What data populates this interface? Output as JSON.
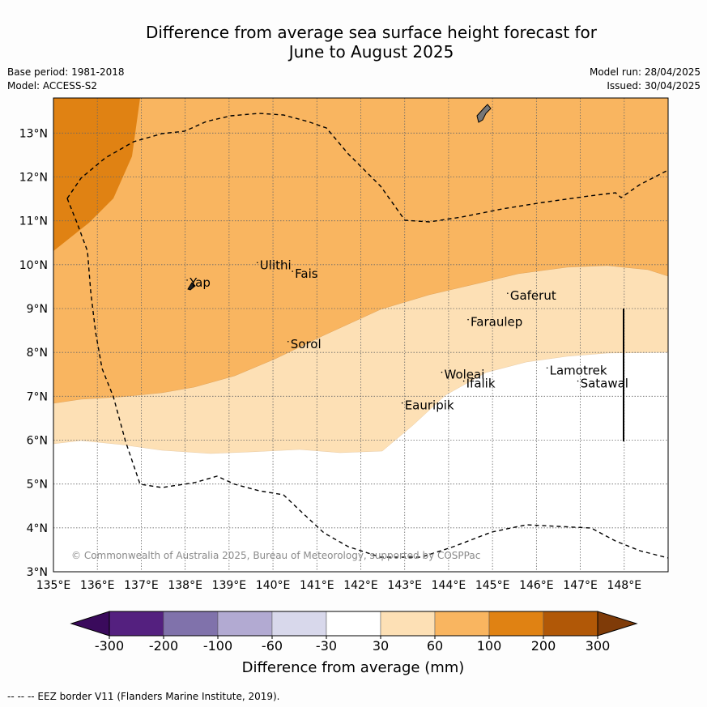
{
  "title_line1": "Difference from average sea surface height forecast for",
  "title_line2": "June to August 2025",
  "base_period": "Base period: 1981-2018",
  "model": "Model: ACCESS-S2",
  "model_run": "Model run: 28/04/2025",
  "issued": "Issued: 30/04/2025",
  "copyright": "© Commonwealth of Australia 2025, Bureau of Meteorology, supported by COSPPac",
  "footer_note": "--  --  -- EEZ border V11 (Flanders Marine Institute, 2019).",
  "colorbar": {
    "title": "Difference from average (mm)",
    "ticks": [
      "-300",
      "-200",
      "-100",
      "-60",
      "-30",
      "30",
      "60",
      "100",
      "200",
      "300"
    ],
    "colors": [
      "#3a0a5c",
      "#54207f",
      "#8072ab",
      "#b2aad2",
      "#d8d8eb",
      "#ffffff",
      "#fde0b5",
      "#f9b560",
      "#e08213",
      "#b15807",
      "#7f3b08"
    ]
  },
  "axes": {
    "lon_labels": [
      "135°E",
      "136°E",
      "137°E",
      "138°E",
      "139°E",
      "140°E",
      "141°E",
      "142°E",
      "143°E",
      "144°E",
      "145°E",
      "146°E",
      "147°E",
      "148°E"
    ],
    "lat_labels": [
      "13°N",
      "12°N",
      "11°N",
      "10°N",
      "9°N",
      "8°N",
      "7°N",
      "6°N",
      "5°N",
      "4°N",
      "3°N"
    ],
    "lon_range": [
      135,
      149
    ],
    "lat_range": [
      3,
      13.8
    ]
  },
  "places": [
    {
      "name": "Yap",
      "lon": 138.1,
      "lat": 9.5
    },
    {
      "name": "Ulithi",
      "lon": 139.7,
      "lat": 9.9
    },
    {
      "name": "Fais",
      "lon": 140.5,
      "lat": 9.7
    },
    {
      "name": "Sorol",
      "lon": 140.4,
      "lat": 8.1
    },
    {
      "name": "Gaferut",
      "lon": 145.4,
      "lat": 9.2
    },
    {
      "name": "Faraulep",
      "lon": 144.5,
      "lat": 8.6
    },
    {
      "name": "Woleai",
      "lon": 143.9,
      "lat": 7.4
    },
    {
      "name": "Ifalik",
      "lon": 144.4,
      "lat": 7.2
    },
    {
      "name": "Lamotrek",
      "lon": 146.3,
      "lat": 7.5
    },
    {
      "name": "Satawal",
      "lon": 147.0,
      "lat": 7.2
    },
    {
      "name": "Eauripik",
      "lon": 143.0,
      "lat": 6.7
    }
  ]
}
